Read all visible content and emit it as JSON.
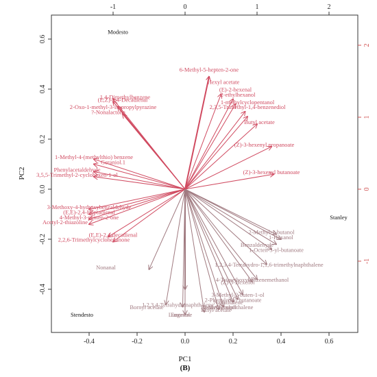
{
  "chart_data": {
    "type": "biplot",
    "xlabel": "PC1",
    "ylabel": "PC2",
    "caption": "(B)",
    "xlim": [
      -0.55,
      0.7
    ],
    "ylim": [
      -0.52,
      0.7
    ],
    "top_lim": [
      -1.5,
      2.4
    ],
    "right_lim": [
      -1.85,
      2.15
    ],
    "bottom_ticks": [
      -0.4,
      -0.2,
      0.0,
      0.2,
      0.4,
      0.6
    ],
    "left_ticks": [
      -0.4,
      -0.2,
      0.0,
      0.2,
      0.4,
      0.6
    ],
    "top_ticks": [
      -1,
      0,
      1,
      2
    ],
    "right_ticks": [
      -1,
      0,
      1,
      2
    ],
    "grid": false,
    "observations": [
      {
        "label": "Modesto",
        "x": -0.28,
        "y": 0.62
      },
      {
        "label": "Stanley",
        "x": 0.64,
        "y": -0.12
      },
      {
        "label": "Stendesto",
        "x": -0.43,
        "y": -0.51
      }
    ],
    "arrow_color": "#d04a60",
    "arrow_color_grey": "#a07a80",
    "variables": [
      {
        "label": "6-Methyl-5-hepten-2-one",
        "ax": 0.1,
        "ay": 0.45,
        "lx": 0.1,
        "ly": 0.47,
        "bold": true
      },
      {
        "label": "Hexyl acetate",
        "ax": 0.15,
        "ay": 0.38,
        "lx": 0.16,
        "ly": 0.42
      },
      {
        "label": "(E)-2-hexenal",
        "ax": 0.2,
        "ay": 0.36,
        "lx": 0.21,
        "ly": 0.39
      },
      {
        "label": "2-ethylhexanol",
        "ax": 0.21,
        "ay": 0.34,
        "lx": 0.22,
        "ly": 0.37
      },
      {
        "label": "1-methylcyclopentanol",
        "ax": 0.25,
        "ay": 0.31,
        "lx": 0.26,
        "ly": 0.34
      },
      {
        "label": "2,3,5-Trimethyl-1,4-benzenediol",
        "ax": 0.26,
        "ay": 0.29,
        "lx": 0.26,
        "ly": 0.32
      },
      {
        "label": "Butyl acetate",
        "ax": 0.3,
        "ay": 0.26,
        "lx": 0.31,
        "ly": 0.26
      },
      {
        "label": "(Z)-3-hexenyl propanoate",
        "ax": 0.36,
        "ay": 0.17,
        "lx": 0.33,
        "ly": 0.17
      },
      {
        "label": "(Z)-3-hexenyl butanoate",
        "ax": 0.37,
        "ay": 0.06,
        "lx": 0.36,
        "ly": 0.06
      },
      {
        "label": "1-Methyl-4-(methylthio) benzene",
        "ax": -0.38,
        "ay": 0.12,
        "lx": -0.38,
        "ly": 0.12
      },
      {
        "label": "Geraniol.1",
        "ax": -0.38,
        "ay": 0.1,
        "lx": -0.3,
        "ly": 0.1
      },
      {
        "label": "Phenylacetaldehyde",
        "ax": -0.38,
        "ay": 0.07,
        "lx": -0.45,
        "ly": 0.07
      },
      {
        "label": "3,5,5-Trimethyl-2-cyclohexen-1-ol",
        "ax": -0.38,
        "ay": 0.05,
        "lx": -0.45,
        "ly": 0.05
      },
      {
        "label": "1,4-Dimethylbenzene",
        "ax": -0.3,
        "ay": 0.36,
        "lx": -0.25,
        "ly": 0.36
      },
      {
        "label": "(E,Z)-2,4-Decadienal",
        "ax": -0.3,
        "ay": 0.35,
        "lx": -0.26,
        "ly": 0.35
      },
      {
        "label": "2-Oxo-1-methyl-3-isopropylpyrazine",
        "ax": -0.28,
        "ay": 0.33,
        "lx": -0.3,
        "ly": 0.32
      },
      {
        "label": "?-Nonalactone",
        "ax": -0.26,
        "ay": 0.3,
        "lx": -0.32,
        "ly": 0.3
      },
      {
        "label": "3-Methoxy-4-hydroxybenzaldehyde",
        "ax": -0.4,
        "ay": -0.08,
        "lx": -0.4,
        "ly": -0.08
      },
      {
        "label": "(E,E)-2,4-Heptadienal",
        "ax": -0.4,
        "ay": -0.1,
        "lx": -0.4,
        "ly": -0.1
      },
      {
        "label": "4-Methyl-3-penten-2-one",
        "ax": -0.4,
        "ay": -0.12,
        "lx": -0.4,
        "ly": -0.12
      },
      {
        "label": "Acetyl-2-thiazoline",
        "ax": -0.4,
        "ay": -0.14,
        "lx": -0.5,
        "ly": -0.14
      },
      {
        "label": "(E,E)-2,4-decadienal",
        "ax": -0.32,
        "ay": -0.19,
        "lx": -0.3,
        "ly": -0.19
      },
      {
        "label": "2,2,6-Trimethylcyclohexanone",
        "ax": -0.3,
        "ay": -0.21,
        "lx": -0.38,
        "ly": -0.21
      },
      {
        "label": "Nonanal",
        "ax": -0.15,
        "ay": -0.32,
        "lx": -0.33,
        "ly": -0.32
      },
      {
        "label": "2-Methyl-1-butanol",
        "ax": 0.38,
        "ay": -0.18,
        "lx": 0.36,
        "ly": -0.18
      },
      {
        "label": "1-Hexanol",
        "ax": 0.4,
        "ay": -0.2,
        "lx": 0.4,
        "ly": -0.2
      },
      {
        "label": "Benzaldehyde",
        "ax": 0.38,
        "ay": -0.22,
        "lx": 0.3,
        "ly": -0.23
      },
      {
        "label": "1-Octen-3-yl-butanoate",
        "ax": 0.36,
        "ay": -0.24,
        "lx": 0.38,
        "ly": -0.25
      },
      {
        "label": "1,2,3,4-Tetrahydro-1,1,6-trimethylnaphthalene",
        "ax": 0.34,
        "ay": -0.3,
        "lx": 0.35,
        "ly": -0.31
      },
      {
        "label": "4-Trimethoxybenzenemethanol",
        "ax": 0.3,
        "ay": -0.36,
        "lx": 0.28,
        "ly": -0.37
      },
      {
        "label": "(Z)-3-Hexenol",
        "ax": 0.28,
        "ay": -0.37,
        "lx": 0.22,
        "ly": -0.38
      },
      {
        "label": "3-Methyl-2-buten-1-ol",
        "ax": 0.24,
        "ay": -0.42,
        "lx": 0.22,
        "ly": -0.43
      },
      {
        "label": "2-Phenylethyl butanoate",
        "ax": 0.22,
        "ay": -0.44,
        "lx": 0.2,
        "ly": -0.45
      },
      {
        "label": "Naphthalene",
        "ax": 0.2,
        "ay": -0.45,
        "lx": 0.18,
        "ly": -0.46
      },
      {
        "label": "Benzyl alcohol",
        "ax": 0.16,
        "ay": -0.47,
        "lx": 0.14,
        "ly": -0.48
      },
      {
        "label": "2-Methylnaphthalene",
        "ax": 0.14,
        "ay": -0.48,
        "lx": 0.18,
        "ly": -0.48
      },
      {
        "label": "Bornyl acetate",
        "ax": -0.08,
        "ay": -0.46,
        "lx": -0.16,
        "ly": -0.48
      },
      {
        "label": "1,2,3,4-Tetrahydronaphthalene",
        "ax": -0.01,
        "ay": -0.47,
        "lx": -0.03,
        "ly": -0.47
      },
      {
        "label": "Ethyl acetate",
        "ax": 0.08,
        "ay": -0.49,
        "lx": 0.13,
        "ly": -0.49
      },
      {
        "label": "Limonene",
        "ax": 0.0,
        "ay": -0.5,
        "lx": -0.02,
        "ly": -0.51
      },
      {
        "label": "Eugenol",
        "ax": 0.0,
        "ay": -0.4,
        "lx": -0.02,
        "ly": -0.51,
        "bold": true
      }
    ]
  }
}
